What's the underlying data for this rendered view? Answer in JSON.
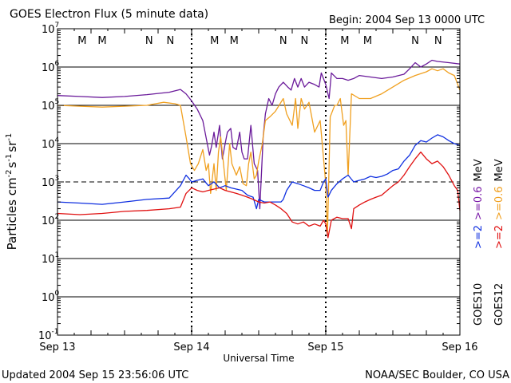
{
  "chart_data": {
    "type": "line",
    "title": "GOES Electron Flux (5 minute data)",
    "begin_label": "Begin: 2004 Sep 13 0000 UTC",
    "xlabel": "Universal Time",
    "ylabel_text": "Particles cm",
    "ylabel_units": [
      "-2",
      "s",
      "-1",
      "sr",
      "-1"
    ],
    "x_ticks": [
      "Sep 13",
      "Sep 14",
      "Sep 15",
      "Sep 16"
    ],
    "xlim_hours": [
      0,
      72
    ],
    "yscale": "log",
    "ylim": [
      0.1,
      10000000
    ],
    "y_ticks": [
      {
        "base": "10",
        "exp": "7"
      },
      {
        "base": "10",
        "exp": "6"
      },
      {
        "base": "10",
        "exp": "5"
      },
      {
        "base": "10",
        "exp": "4"
      },
      {
        "base": "10",
        "exp": "3"
      },
      {
        "base": "10",
        "exp": "2"
      },
      {
        "base": "10",
        "exp": "1"
      },
      {
        "base": "10",
        "exp": "0"
      },
      {
        "base": "10",
        "exp": "-1"
      }
    ],
    "threshold_line": 1000,
    "markers": [
      {
        "label": "M",
        "hour": 4.4,
        "color": "#e01010"
      },
      {
        "label": "M",
        "hour": 8.0,
        "color": "#1030e0"
      },
      {
        "label": "N",
        "hour": 16.4,
        "color": "#e01010"
      },
      {
        "label": "N",
        "hour": 20.2,
        "color": "#1030e0"
      },
      {
        "label": "M",
        "hour": 28.1,
        "color": "#e01010"
      },
      {
        "label": "M",
        "hour": 31.6,
        "color": "#1030e0"
      },
      {
        "label": "N",
        "hour": 40.4,
        "color": "#e01010"
      },
      {
        "label": "N",
        "hour": 44.2,
        "color": "#1030e0"
      },
      {
        "label": "M",
        "hour": 51.4,
        "color": "#e01010"
      },
      {
        "label": "M",
        "hour": 55.5,
        "color": "#1030e0"
      },
      {
        "label": "N",
        "hour": 64.0,
        "color": "#e01010"
      },
      {
        "label": "N",
        "hour": 68.1,
        "color": "#1030e0"
      }
    ],
    "legend_right": [
      {
        "label": ">=2",
        "color": "#1030e0"
      },
      {
        "label": ">=0.6",
        "color": "#7a1aa8"
      },
      {
        "label": "MeV",
        "color": "#000000"
      },
      {
        "label": ">=2",
        "color": "#e01010"
      },
      {
        "label": ">=0.6",
        "color": "#f0a020"
      },
      {
        "label": "MeV",
        "color": "#000000"
      }
    ],
    "satellites": [
      "GOES10",
      "GOES12"
    ],
    "series": [
      {
        "name": "GOES10 >=0.6 MeV",
        "color": "#6a1a9a",
        "points": [
          [
            0,
            180000
          ],
          [
            4,
            170000
          ],
          [
            8,
            160000
          ],
          [
            12,
            170000
          ],
          [
            16,
            190000
          ],
          [
            20,
            220000
          ],
          [
            22,
            260000
          ],
          [
            23,
            200000
          ],
          [
            24,
            130000
          ],
          [
            25,
            80000
          ],
          [
            26,
            40000
          ],
          [
            26.8,
            10000
          ],
          [
            27.2,
            5000
          ],
          [
            27.6,
            9000
          ],
          [
            28,
            20000
          ],
          [
            28.4,
            8000
          ],
          [
            29,
            30000
          ],
          [
            29.5,
            4000
          ],
          [
            30,
            10000
          ],
          [
            30.4,
            20000
          ],
          [
            31,
            25000
          ],
          [
            31.4,
            8000
          ],
          [
            32,
            7000
          ],
          [
            32.6,
            20000
          ],
          [
            33,
            6000
          ],
          [
            33.4,
            4000
          ],
          [
            34,
            4000
          ],
          [
            34.6,
            30000
          ],
          [
            35.2,
            3000
          ],
          [
            35.8,
            2000
          ],
          [
            36.2,
            200
          ],
          [
            36.8,
            15000
          ],
          [
            37.2,
            60000
          ],
          [
            37.8,
            150000
          ],
          [
            38.4,
            100000
          ],
          [
            39,
            200000
          ],
          [
            39.6,
            300000
          ],
          [
            40.4,
            400000
          ],
          [
            41.2,
            300000
          ],
          [
            41.8,
            250000
          ],
          [
            42.4,
            500000
          ],
          [
            43,
            300000
          ],
          [
            43.6,
            500000
          ],
          [
            44.2,
            300000
          ],
          [
            45,
            400000
          ],
          [
            46,
            350000
          ],
          [
            46.8,
            300000
          ],
          [
            47.2,
            700000
          ],
          [
            48,
            350000
          ],
          [
            48.6,
            150000
          ],
          [
            49,
            700000
          ],
          [
            50,
            500000
          ],
          [
            51,
            500000
          ],
          [
            52,
            450000
          ],
          [
            53,
            500000
          ],
          [
            54,
            600000
          ],
          [
            56,
            550000
          ],
          [
            58,
            500000
          ],
          [
            60,
            550000
          ],
          [
            62,
            650000
          ],
          [
            63,
            900000
          ],
          [
            64,
            1300000
          ],
          [
            65,
            1000000
          ],
          [
            66,
            1200000
          ],
          [
            67,
            1500000
          ],
          [
            68,
            1400000
          ],
          [
            70,
            1300000
          ],
          [
            72,
            1200000
          ]
        ]
      },
      {
        "name": "GOES12 >=0.6 MeV",
        "color": "#f0a020",
        "points": [
          [
            0,
            100000
          ],
          [
            4,
            95000
          ],
          [
            8,
            90000
          ],
          [
            12,
            95000
          ],
          [
            16,
            100000
          ],
          [
            19,
            120000
          ],
          [
            21,
            110000
          ],
          [
            22,
            100000
          ],
          [
            23,
            15000
          ],
          [
            23.8,
            3000
          ],
          [
            24.5,
            2000
          ],
          [
            25.2,
            3000
          ],
          [
            26,
            7000
          ],
          [
            26.6,
            2000
          ],
          [
            27,
            3000
          ],
          [
            27.4,
            500
          ],
          [
            28,
            3000
          ],
          [
            28.4,
            600
          ],
          [
            28.8,
            6000
          ],
          [
            29.2,
            15000
          ],
          [
            29.7,
            3000
          ],
          [
            30.2,
            600
          ],
          [
            30.8,
            10000
          ],
          [
            31.2,
            3000
          ],
          [
            32,
            1500
          ],
          [
            32.6,
            2500
          ],
          [
            33.2,
            900
          ],
          [
            33.8,
            800
          ],
          [
            34.2,
            3000
          ],
          [
            34.6,
            6000
          ],
          [
            35.2,
            1200
          ],
          [
            35.6,
            1500
          ],
          [
            36,
            3500
          ],
          [
            36.6,
            9000
          ],
          [
            37.2,
            40000
          ],
          [
            38,
            50000
          ],
          [
            39,
            70000
          ],
          [
            40.4,
            150000
          ],
          [
            41,
            60000
          ],
          [
            42,
            30000
          ],
          [
            42.6,
            150000
          ],
          [
            43,
            25000
          ],
          [
            43.6,
            150000
          ],
          [
            44.2,
            80000
          ],
          [
            45,
            120000
          ],
          [
            46,
            20000
          ],
          [
            47,
            40000
          ],
          [
            48,
            900
          ],
          [
            48.3,
            40
          ],
          [
            48.8,
            50000
          ],
          [
            49.6,
            100000
          ],
          [
            50,
            100000
          ],
          [
            50.6,
            150000
          ],
          [
            51.2,
            30000
          ],
          [
            51.6,
            40000
          ],
          [
            52,
            1500
          ],
          [
            52.6,
            200000
          ],
          [
            54,
            150000
          ],
          [
            56,
            150000
          ],
          [
            58,
            200000
          ],
          [
            60,
            300000
          ],
          [
            62,
            450000
          ],
          [
            64,
            600000
          ],
          [
            66,
            750000
          ],
          [
            67,
            900000
          ],
          [
            68,
            800000
          ],
          [
            69,
            900000
          ],
          [
            70,
            700000
          ],
          [
            71,
            600000
          ],
          [
            72,
            250000
          ]
        ]
      },
      {
        "name": "GOES10 >=2 MeV",
        "color": "#1030e0",
        "points": [
          [
            0,
            300
          ],
          [
            4,
            280
          ],
          [
            8,
            260
          ],
          [
            12,
            300
          ],
          [
            16,
            350
          ],
          [
            20,
            380
          ],
          [
            22,
            800
          ],
          [
            23,
            1500
          ],
          [
            23.6,
            1200
          ],
          [
            24,
            1000
          ],
          [
            25,
            1100
          ],
          [
            26,
            1200
          ],
          [
            27,
            800
          ],
          [
            28,
            1000
          ],
          [
            29,
            700
          ],
          [
            30,
            800
          ],
          [
            31,
            700
          ],
          [
            32,
            650
          ],
          [
            33,
            600
          ],
          [
            34,
            450
          ],
          [
            35,
            400
          ],
          [
            35.6,
            200
          ],
          [
            36,
            350
          ],
          [
            37,
            300
          ],
          [
            38,
            300
          ],
          [
            39,
            300
          ],
          [
            40,
            300
          ],
          [
            40.4,
            350
          ],
          [
            41,
            600
          ],
          [
            42,
            1000
          ],
          [
            43,
            900
          ],
          [
            44,
            800
          ],
          [
            45,
            700
          ],
          [
            46,
            600
          ],
          [
            47,
            600
          ],
          [
            47.6,
            1000
          ],
          [
            48,
            1200
          ],
          [
            48.4,
            400
          ],
          [
            49,
            600
          ],
          [
            50,
            900
          ],
          [
            51,
            1200
          ],
          [
            52,
            1500
          ],
          [
            53,
            1000
          ],
          [
            54,
            1100
          ],
          [
            55,
            1200
          ],
          [
            56,
            1400
          ],
          [
            57,
            1300
          ],
          [
            58,
            1400
          ],
          [
            59,
            1600
          ],
          [
            60,
            2000
          ],
          [
            61,
            2200
          ],
          [
            62,
            3500
          ],
          [
            63,
            5000
          ],
          [
            64,
            9000
          ],
          [
            65,
            12000
          ],
          [
            66,
            11000
          ],
          [
            67,
            14000
          ],
          [
            68,
            17000
          ],
          [
            69,
            15000
          ],
          [
            70,
            12000
          ],
          [
            71,
            10000
          ],
          [
            72,
            9000
          ]
        ]
      },
      {
        "name": "GOES12 >=2 MeV",
        "color": "#e01010",
        "points": [
          [
            0,
            150
          ],
          [
            4,
            140
          ],
          [
            8,
            150
          ],
          [
            12,
            170
          ],
          [
            16,
            180
          ],
          [
            20,
            200
          ],
          [
            22,
            220
          ],
          [
            23,
            500
          ],
          [
            24,
            700
          ],
          [
            25,
            600
          ],
          [
            26,
            550
          ],
          [
            27,
            600
          ],
          [
            28,
            650
          ],
          [
            29,
            700
          ],
          [
            30,
            600
          ],
          [
            31,
            550
          ],
          [
            32,
            500
          ],
          [
            33,
            450
          ],
          [
            34,
            400
          ],
          [
            35,
            350
          ],
          [
            36,
            300
          ],
          [
            37,
            280
          ],
          [
            38,
            300
          ],
          [
            39,
            250
          ],
          [
            40,
            200
          ],
          [
            41,
            150
          ],
          [
            42,
            90
          ],
          [
            43,
            80
          ],
          [
            44,
            90
          ],
          [
            45,
            70
          ],
          [
            46,
            80
          ],
          [
            47,
            70
          ],
          [
            47.6,
            100
          ],
          [
            48,
            80
          ],
          [
            48.4,
            35
          ],
          [
            49,
            100
          ],
          [
            50,
            120
          ],
          [
            51,
            110
          ],
          [
            52,
            110
          ],
          [
            52.6,
            60
          ],
          [
            53,
            200
          ],
          [
            54,
            250
          ],
          [
            55,
            300
          ],
          [
            56,
            350
          ],
          [
            57,
            400
          ],
          [
            58,
            450
          ],
          [
            59,
            600
          ],
          [
            60,
            800
          ],
          [
            61,
            1000
          ],
          [
            62,
            1500
          ],
          [
            63,
            2500
          ],
          [
            64,
            4000
          ],
          [
            65,
            6000
          ],
          [
            66,
            4000
          ],
          [
            67,
            3000
          ],
          [
            68,
            3500
          ],
          [
            69,
            2500
          ],
          [
            70,
            1500
          ],
          [
            71,
            800
          ],
          [
            71.6,
            600
          ],
          [
            72,
            180
          ]
        ]
      }
    ]
  },
  "footer": {
    "updated": "Updated 2004 Sep 15 23:56:06 UTC",
    "source": "NOAA/SEC Boulder, CO USA"
  }
}
